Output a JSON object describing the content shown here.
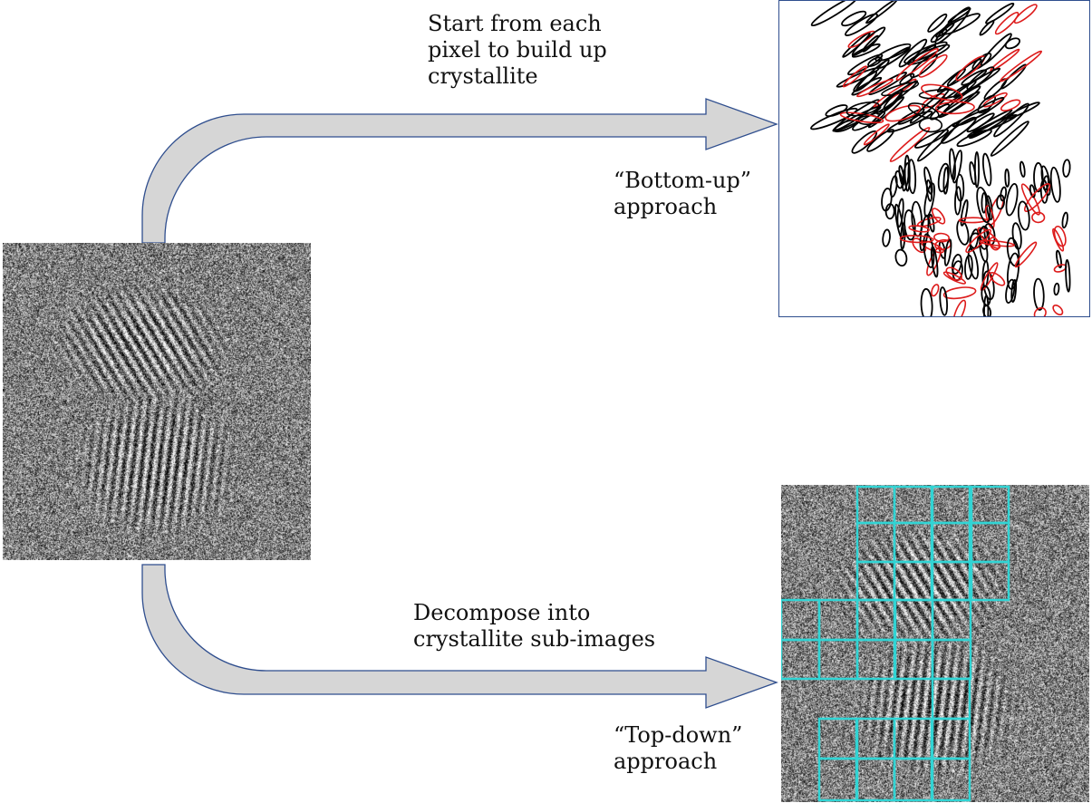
{
  "captions": {
    "bottom_up_instruction": "Start from each\npixel to build up\ncrystallite",
    "bottom_up_label": "“Bottom-up”\napproach",
    "top_down_instruction": "Decompose into\ncrystallite sub-images",
    "top_down_label": "“Top-down”\napproach"
  },
  "colors": {
    "arrow_fill": "#d6d6d6",
    "arrow_stroke": "#2f4e8e",
    "panel_border": "#2f4e8e",
    "ellipse_black": "#000000",
    "ellipse_red": "#dd1b1b",
    "grid_cyan": "#31d4d4"
  }
}
